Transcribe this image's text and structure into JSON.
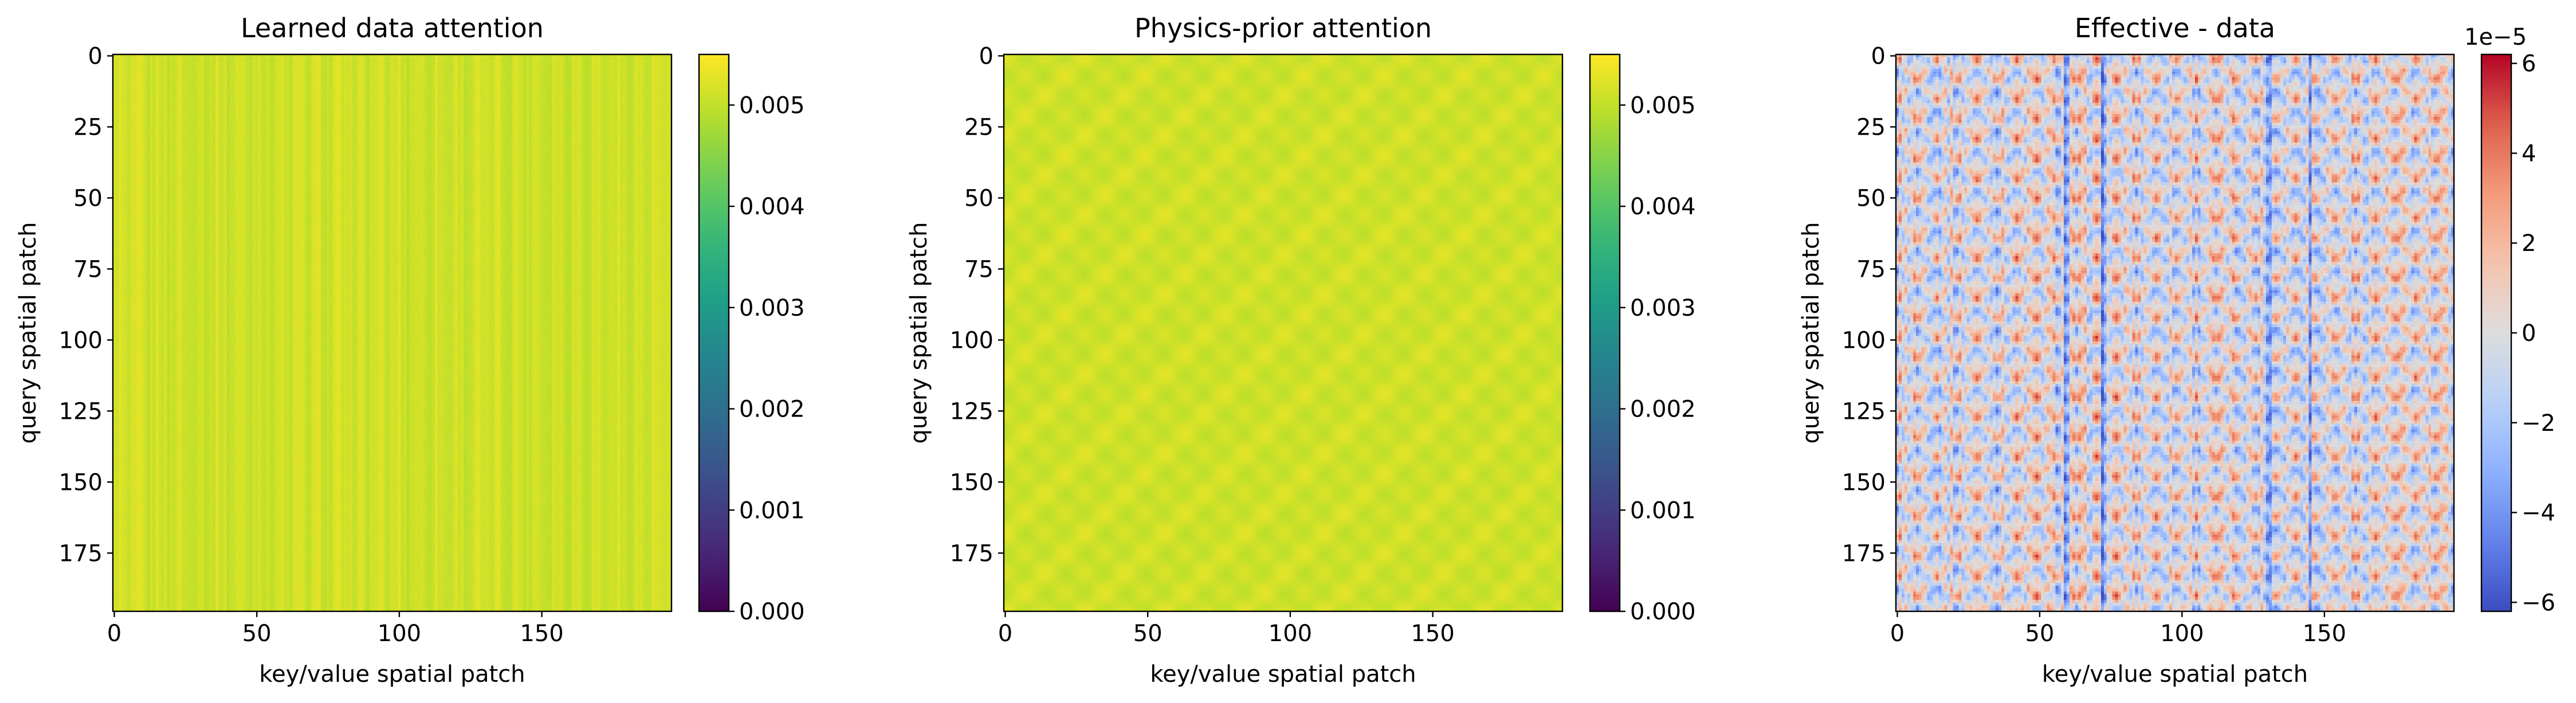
{
  "chart_data": [
    {
      "type": "heatmap",
      "title": "Learned data attention",
      "xlabel": "key/value spatial patch",
      "ylabel": "query spatial patch",
      "size": 196,
      "xlim": [
        -0.5,
        195.5
      ],
      "ylim": [
        195.5,
        -0.5
      ],
      "x_ticks": [
        0,
        50,
        100,
        150
      ],
      "y_ticks": [
        0,
        25,
        50,
        75,
        100,
        125,
        150,
        175
      ],
      "pattern": "vertical-stripes",
      "value_range": [
        0.0047,
        0.0055
      ],
      "colormap": "viridis",
      "colorbar": {
        "min": 0.0,
        "max": 0.0055,
        "ticks": [
          0.0,
          0.001,
          0.002,
          0.003,
          0.004,
          0.005
        ],
        "tick_labels": [
          "0.000",
          "0.001",
          "0.002",
          "0.003",
          "0.004",
          "0.005"
        ],
        "offset_label": ""
      }
    },
    {
      "type": "heatmap",
      "title": "Physics-prior attention",
      "xlabel": "key/value spatial patch",
      "ylabel": "query spatial patch",
      "size": 196,
      "xlim": [
        -0.5,
        195.5
      ],
      "ylim": [
        195.5,
        -0.5
      ],
      "x_ticks": [
        0,
        50,
        100,
        150
      ],
      "y_ticks": [
        0,
        25,
        50,
        75,
        100,
        125,
        150,
        175
      ],
      "pattern": "checkerboard",
      "value_range": [
        0.0049,
        0.0053
      ],
      "colormap": "viridis",
      "colorbar": {
        "min": 0.0,
        "max": 0.0055,
        "ticks": [
          0.0,
          0.001,
          0.002,
          0.003,
          0.004,
          0.005
        ],
        "tick_labels": [
          "0.000",
          "0.001",
          "0.002",
          "0.003",
          "0.004",
          "0.005"
        ],
        "offset_label": ""
      }
    },
    {
      "type": "heatmap",
      "title": "Effective - data",
      "xlabel": "key/value spatial patch",
      "ylabel": "query spatial patch",
      "size": 196,
      "xlim": [
        -0.5,
        195.5
      ],
      "ylim": [
        195.5,
        -0.5
      ],
      "x_ticks": [
        0,
        50,
        100,
        150
      ],
      "y_ticks": [
        0,
        25,
        50,
        75,
        100,
        125,
        150,
        175
      ],
      "pattern": "periodic-difference",
      "value_range": [
        -6.2e-05,
        6.2e-05
      ],
      "colormap": "coolwarm",
      "colorbar": {
        "min": -6.2,
        "max": 6.2,
        "ticks": [
          -6,
          -4,
          -2,
          0,
          2,
          4,
          6
        ],
        "tick_labels": [
          "−6",
          "−4",
          "−2",
          "0",
          "2",
          "4",
          "6"
        ],
        "offset_label": "1e−5"
      }
    }
  ]
}
